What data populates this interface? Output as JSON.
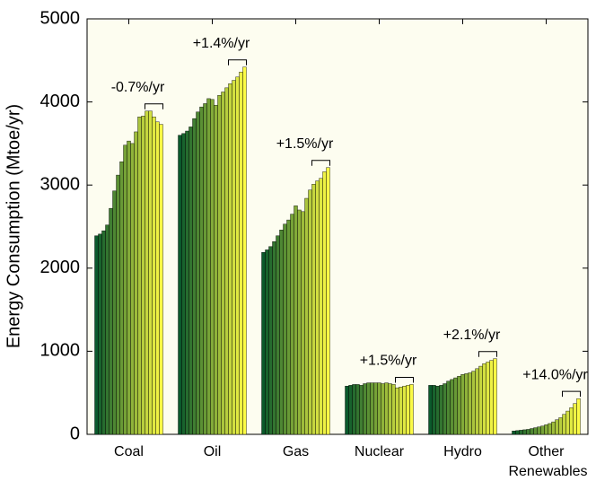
{
  "chart_data": {
    "type": "grouped-bar",
    "y_label": "Energy Consumption (Mtoe/yr)",
    "categories": [
      "Coal",
      "Oil",
      "Gas",
      "Nuclear",
      "Hydro",
      "Other"
    ],
    "category_note": "Renewables",
    "annotations": [
      "-0.7%/yr",
      "+1.4%/yr",
      "+1.5%/yr",
      "+1.5%/yr",
      "+2.1%/yr",
      "+14.0%/yr"
    ],
    "groups": [
      [
        2390,
        2410,
        2450,
        2520,
        2720,
        2930,
        3120,
        3280,
        3480,
        3530,
        3500,
        3640,
        3820,
        3830,
        3890,
        3890,
        3820,
        3760,
        3730
      ],
      [
        3600,
        3620,
        3650,
        3700,
        3800,
        3880,
        3940,
        3980,
        4040,
        4030,
        3960,
        4080,
        4120,
        4170,
        4220,
        4260,
        4300,
        4360,
        4420
      ],
      [
        2190,
        2220,
        2260,
        2320,
        2390,
        2460,
        2530,
        2580,
        2650,
        2750,
        2700,
        2680,
        2840,
        2940,
        3010,
        3050,
        3080,
        3160,
        3210
      ],
      [
        580,
        590,
        600,
        600,
        590,
        610,
        620,
        620,
        620,
        620,
        610,
        620,
        610,
        600,
        560,
        570,
        580,
        590,
        600
      ],
      [
        590,
        590,
        580,
        590,
        610,
        640,
        660,
        680,
        700,
        720,
        730,
        740,
        760,
        790,
        820,
        850,
        870,
        890,
        910
      ],
      [
        40,
        45,
        50,
        55,
        60,
        70,
        80,
        90,
        100,
        115,
        130,
        150,
        175,
        200,
        240,
        280,
        320,
        370,
        430
      ]
    ],
    "color_from": "#0b5a2c",
    "color_to": "#fbfb45",
    "ylim": [
      0,
      5000
    ],
    "yticks": [
      0,
      1000,
      2000,
      3000,
      4000,
      5000
    ]
  }
}
